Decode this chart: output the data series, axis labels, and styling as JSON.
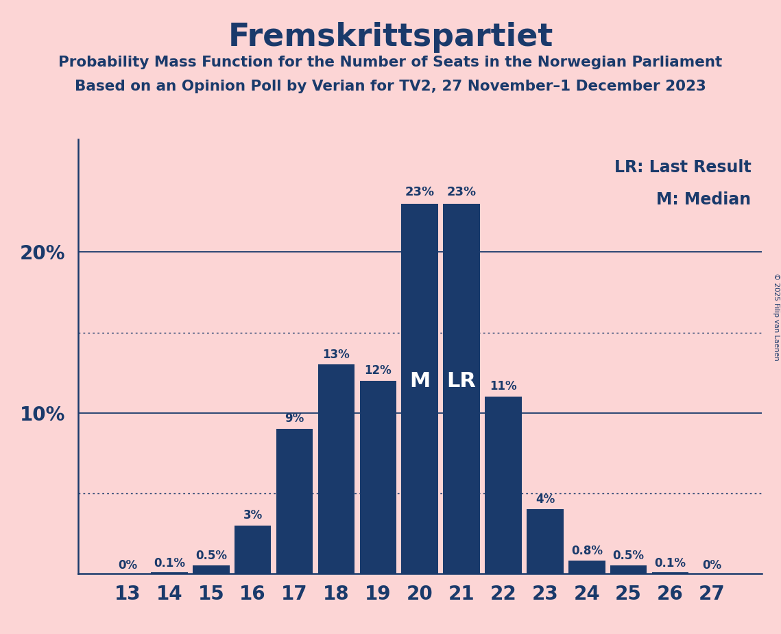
{
  "title": "Fremskrittspartiet",
  "subtitle1": "Probability Mass Function for the Number of Seats in the Norwegian Parliament",
  "subtitle2": "Based on an Opinion Poll by Verian for TV2, 27 November–1 December 2023",
  "categories": [
    13,
    14,
    15,
    16,
    17,
    18,
    19,
    20,
    21,
    22,
    23,
    24,
    25,
    26,
    27
  ],
  "values": [
    0.0,
    0.1,
    0.5,
    3.0,
    9.0,
    13.0,
    12.0,
    23.0,
    23.0,
    11.0,
    4.0,
    0.8,
    0.5,
    0.1,
    0.0
  ],
  "labels": [
    "0%",
    "0.1%",
    "0.5%",
    "3%",
    "9%",
    "13%",
    "12%",
    "23%",
    "23%",
    "11%",
    "4%",
    "0.8%",
    "0.5%",
    "0.1%",
    "0%"
  ],
  "bar_color": "#1a3a6b",
  "background_color": "#fcd5d5",
  "text_color": "#1a3a6b",
  "white_text": "#ffffff",
  "median_bar_cat": 20,
  "last_result_bar_cat": 21,
  "legend_lr": "LR: Last Result",
  "legend_m": "M: Median",
  "copyright": "© 2025 Filip van Laenen",
  "ylim": [
    0,
    27
  ],
  "dotted_line_values": [
    5,
    15
  ],
  "solid_line_values": [
    10,
    20
  ]
}
